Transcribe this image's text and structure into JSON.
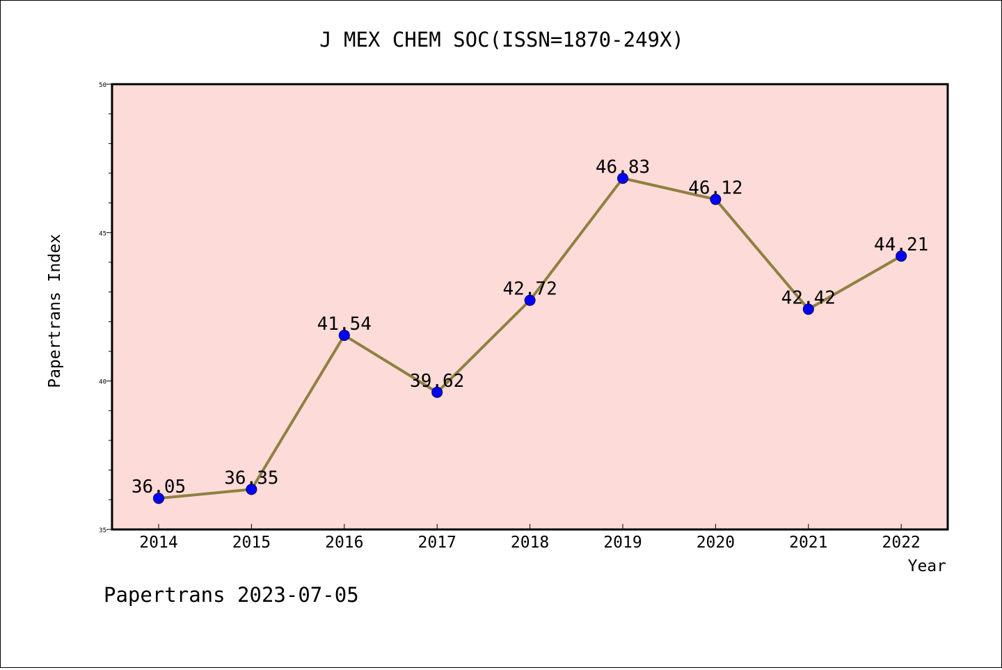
{
  "chart_data": {
    "type": "line",
    "title": "J MEX CHEM SOC(ISSN=1870-249X)",
    "xlabel": "Year",
    "ylabel": "Papertrans Index",
    "categories": [
      "2014",
      "2015",
      "2016",
      "2017",
      "2018",
      "2019",
      "2020",
      "2021",
      "2022"
    ],
    "series": [
      {
        "values": [
          36.05,
          36.35,
          41.54,
          39.62,
          42.72,
          46.83,
          46.12,
          42.42,
          44.21
        ],
        "labels": [
          "36.05",
          "36.35",
          "41.54",
          "39.62",
          "42.72",
          "46.83",
          "46.12",
          "42.42",
          "44.21"
        ]
      }
    ],
    "ylim": [
      35,
      50
    ],
    "ytick_labels": [
      "35",
      "40",
      "45",
      "50"
    ],
    "grid": false,
    "colors": {
      "plot_background": "#fddbd9",
      "line": "#8f8040",
      "marker": "#0000ff"
    }
  },
  "footer": {
    "watermark": "Papertrans 2023-07-05"
  }
}
